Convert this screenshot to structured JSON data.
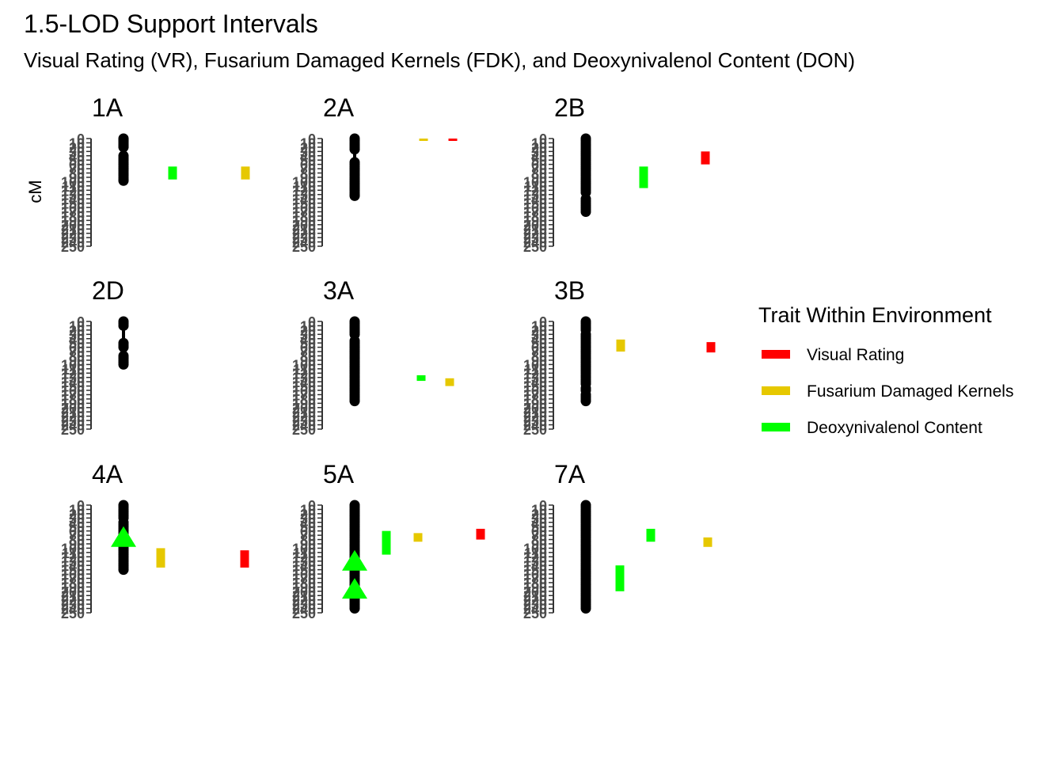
{
  "chart_data": {
    "type": "scatter",
    "title": "1.5-LOD Support Intervals",
    "subtitle": "Visual Rating (VR), Fusarium Damaged Kernels (FDK), and Deoxynivalenol Content (DON)",
    "ylabel": "cM",
    "y_ticks": [
      0,
      10,
      20,
      30,
      40,
      50,
      60,
      70,
      80,
      90,
      100,
      110,
      120,
      130,
      140,
      150,
      160,
      170,
      180,
      190,
      200,
      210,
      220,
      230,
      240,
      250
    ],
    "y_tick_labels": [
      "0",
      "10",
      "20",
      "30",
      "40",
      "50",
      "60",
      "70",
      "80",
      "90",
      "100",
      "110",
      "120",
      "130",
      "140",
      "150",
      "160",
      "170",
      "180",
      "190",
      "200",
      "210",
      "220",
      "230",
      "240",
      "250"
    ],
    "ylim": [
      0,
      250
    ],
    "y_reversed": true,
    "legend": {
      "title": "Trait Within Environment",
      "placement": "right",
      "items": [
        {
          "label": "Visual Rating",
          "color": "#FF0000"
        },
        {
          "label": "Fusarium Damaged Kernels",
          "color": "#E6C800"
        },
        {
          "label": "Deoxynivalenol Content",
          "color": "#00FF00"
        }
      ]
    },
    "chromosomes": [
      {
        "name": "1A",
        "markers": [
          0,
          2,
          5,
          8,
          12,
          15,
          18,
          20,
          40,
          45,
          50,
          55,
          60,
          65,
          70,
          75,
          80,
          85,
          90,
          95,
          98
        ],
        "qtl": [
          {
            "trait": "Deoxynivalenol Content",
            "start": 65,
            "end": 95
          },
          {
            "trait": "Fusarium Damaged Kernels",
            "start": 65,
            "end": 95
          }
        ],
        "peaks": []
      },
      {
        "name": "2A",
        "markers": [
          0,
          5,
          10,
          15,
          20,
          25,
          55,
          60,
          65,
          70,
          75,
          80,
          85,
          90,
          95,
          100,
          105,
          110,
          115,
          120,
          125,
          130,
          133
        ],
        "qtl": [
          {
            "trait": "Fusarium Damaged Kernels",
            "start": 0,
            "end": 5
          },
          {
            "trait": "Visual Rating",
            "start": 0,
            "end": 5
          }
        ],
        "peaks": []
      },
      {
        "name": "2B",
        "markers": [
          0,
          5,
          10,
          15,
          20,
          25,
          30,
          35,
          40,
          45,
          50,
          55,
          60,
          65,
          70,
          75,
          80,
          85,
          90,
          95,
          100,
          105,
          110,
          115,
          120,
          125,
          140,
          145,
          150,
          155,
          160,
          165,
          170
        ],
        "qtl": [
          {
            "trait": "Deoxynivalenol Content",
            "start": 65,
            "end": 115
          },
          {
            "trait": "Visual Rating",
            "start": 30,
            "end": 60
          }
        ],
        "peaks": []
      },
      {
        "name": "2D",
        "markers": [
          0,
          5,
          10,
          50,
          55,
          60,
          80,
          85,
          90,
          95,
          100
        ],
        "qtl": [],
        "peaks": []
      },
      {
        "name": "3A",
        "markers": [
          0,
          5,
          10,
          15,
          20,
          25,
          30,
          45,
          50,
          55,
          60,
          65,
          70,
          75,
          80,
          85,
          90,
          95,
          100,
          105,
          110,
          115,
          120,
          125,
          130,
          135,
          140,
          145,
          150,
          155,
          160,
          165,
          170,
          175,
          180,
          185
        ],
        "qtl": [
          {
            "trait": "Deoxynivalenol Content",
            "start": 125,
            "end": 138
          },
          {
            "trait": "Fusarium Damaged Kernels",
            "start": 132,
            "end": 150
          }
        ],
        "peaks": []
      },
      {
        "name": "3B",
        "markers": [
          0,
          5,
          10,
          15,
          20,
          30,
          35,
          40,
          45,
          50,
          55,
          60,
          65,
          70,
          75,
          80,
          85,
          90,
          95,
          100,
          105,
          110,
          115,
          120,
          125,
          130,
          135,
          140,
          145,
          155,
          160,
          170,
          175,
          180,
          185
        ],
        "qtl": [
          {
            "trait": "Fusarium Damaged Kernels",
            "start": 42,
            "end": 70
          },
          {
            "trait": "Visual Rating",
            "start": 48,
            "end": 72
          }
        ],
        "peaks": []
      },
      {
        "name": "4A",
        "markers": [
          0,
          5,
          10,
          15,
          20,
          25,
          30,
          40,
          45,
          50,
          55,
          60,
          65,
          70,
          75,
          80,
          85,
          90,
          95,
          100,
          105,
          110,
          115,
          120,
          125,
          130,
          135,
          140,
          145,
          150
        ],
        "qtl": [
          {
            "trait": "Fusarium Damaged Kernels",
            "start": 100,
            "end": 145
          },
          {
            "trait": "Visual Rating",
            "start": 105,
            "end": 145
          }
        ],
        "peaks": [
          {
            "trait": "Deoxynivalenol Content",
            "pos": 75
          }
        ]
      },
      {
        "name": "5A",
        "markers": [
          0,
          5,
          10,
          15,
          20,
          25,
          30,
          35,
          40,
          45,
          50,
          55,
          60,
          65,
          70,
          75,
          80,
          85,
          90,
          95,
          100,
          105,
          110,
          115,
          120,
          125,
          130,
          135,
          140,
          145,
          150,
          155,
          160,
          165,
          170,
          175,
          180,
          185,
          190,
          195,
          200,
          205,
          210,
          215,
          220,
          225,
          230,
          235,
          240
        ],
        "qtl": [
          {
            "trait": "Deoxynivalenol Content",
            "start": 60,
            "end": 115
          },
          {
            "trait": "Fusarium Damaged Kernels",
            "start": 65,
            "end": 85
          },
          {
            "trait": "Visual Rating",
            "start": 55,
            "end": 80
          }
        ],
        "peaks": [
          {
            "trait": "Deoxynivalenol Content",
            "pos": 130
          },
          {
            "trait": "Deoxynivalenol Content",
            "pos": 195
          }
        ]
      },
      {
        "name": "7A",
        "markers": [
          0,
          5,
          10,
          15,
          20,
          25,
          30,
          35,
          40,
          45,
          50,
          55,
          60,
          65,
          70,
          75,
          80,
          85,
          90,
          95,
          100,
          105,
          110,
          115,
          120,
          125,
          130,
          135,
          140,
          145,
          150,
          155,
          160,
          165,
          170,
          175,
          180,
          185,
          190,
          195,
          200,
          205,
          210,
          215,
          220,
          225,
          230,
          235,
          240
        ],
        "qtl": [
          {
            "trait": "Deoxynivalenol Content",
            "start": 140,
            "end": 200
          },
          {
            "trait": "Deoxynivalenol Content",
            "start": 55,
            "end": 85
          },
          {
            "trait": "Fusarium Damaged Kernels",
            "start": 75,
            "end": 97
          }
        ],
        "peaks": []
      }
    ]
  }
}
